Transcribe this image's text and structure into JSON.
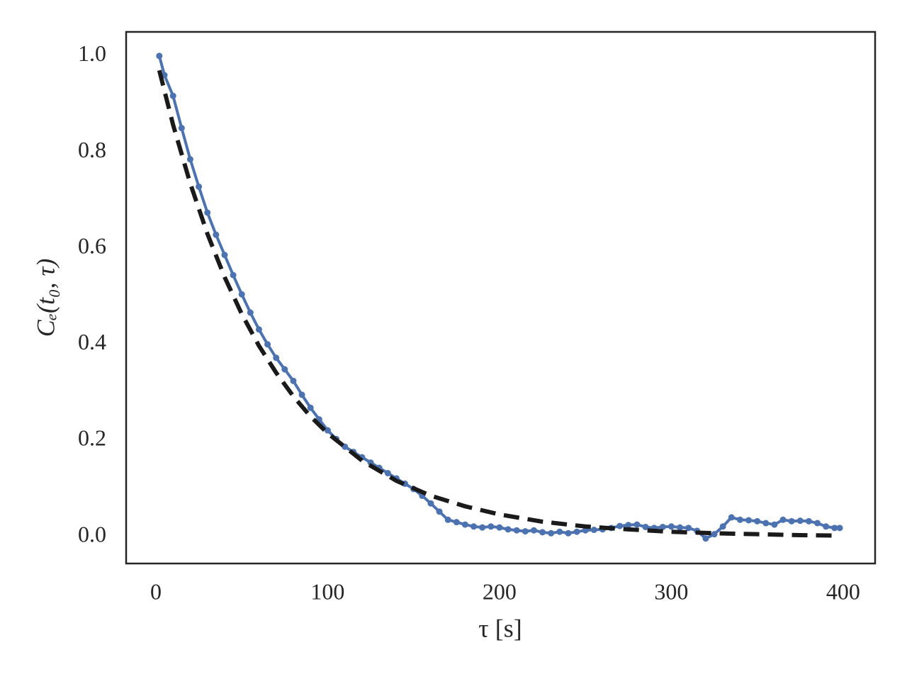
{
  "chart_data": {
    "type": "line",
    "xlabel": "τ [s]",
    "ylabel": "Cₑ(t₀, τ)",
    "xlim": [
      -17.3,
      418.6
    ],
    "ylim": [
      -0.056,
      1.05
    ],
    "xticks": [
      0,
      100,
      200,
      300,
      400
    ],
    "yticks": [
      {
        "value": 0,
        "label": "0.0"
      },
      0.2,
      0.4,
      0.6,
      0.8,
      {
        "value": 1,
        "label": "1.0"
      }
    ],
    "grid": false,
    "series": [
      {
        "color": "#4c72b0",
        "style": "solid-markers",
        "x": [
          2,
          5,
          10,
          15,
          20,
          25,
          30,
          35,
          40,
          45,
          50,
          55,
          60,
          65,
          70,
          75,
          80,
          85,
          90,
          95,
          100,
          105,
          110,
          115,
          120,
          125,
          130,
          135,
          140,
          145,
          150,
          155,
          160,
          165,
          170,
          175,
          180,
          185,
          190,
          195,
          200,
          205,
          210,
          215,
          220,
          225,
          230,
          235,
          240,
          245,
          250,
          255,
          260,
          265,
          270,
          275,
          280,
          285,
          290,
          295,
          300,
          305,
          310,
          315,
          320,
          325,
          330,
          335,
          340,
          345,
          350,
          355,
          360,
          365,
          370,
          375,
          380,
          385,
          390,
          395,
          398
        ],
        "values": [
          1.0,
          0.96,
          0.917,
          0.85,
          0.785,
          0.728,
          0.674,
          0.628,
          0.586,
          0.544,
          0.504,
          0.466,
          0.431,
          0.4,
          0.372,
          0.348,
          0.324,
          0.295,
          0.268,
          0.244,
          0.221,
          0.203,
          0.187,
          0.176,
          0.165,
          0.154,
          0.143,
          0.132,
          0.121,
          0.11,
          0.099,
          0.085,
          0.069,
          0.052,
          0.035,
          0.03,
          0.025,
          0.021,
          0.019,
          0.021,
          0.019,
          0.015,
          0.013,
          0.011,
          0.013,
          0.009,
          0.007,
          0.01,
          0.007,
          0.01,
          0.013,
          0.014,
          0.015,
          0.018,
          0.022,
          0.024,
          0.025,
          0.02,
          0.018,
          0.02,
          0.021,
          0.019,
          0.018,
          0.012,
          -0.004,
          0.005,
          0.021,
          0.04,
          0.035,
          0.034,
          0.032,
          0.028,
          0.025,
          0.035,
          0.032,
          0.033,
          0.032,
          0.028,
          0.021,
          0.018,
          0.018
        ]
      },
      {
        "color": "#1a1a1a",
        "style": "dashed",
        "x": [
          2,
          10,
          20,
          30,
          40,
          50,
          60,
          70,
          80,
          90,
          100,
          120,
          140,
          160,
          180,
          200,
          225,
          250,
          275,
          300,
          325,
          350,
          375,
          398
        ],
        "values": [
          0.97,
          0.857,
          0.735,
          0.63,
          0.54,
          0.463,
          0.397,
          0.341,
          0.292,
          0.25,
          0.215,
          0.158,
          0.116,
          0.085,
          0.063,
          0.046,
          0.031,
          0.021,
          0.015,
          0.01,
          0.007,
          0.005,
          0.003,
          0.002
        ]
      }
    ]
  }
}
